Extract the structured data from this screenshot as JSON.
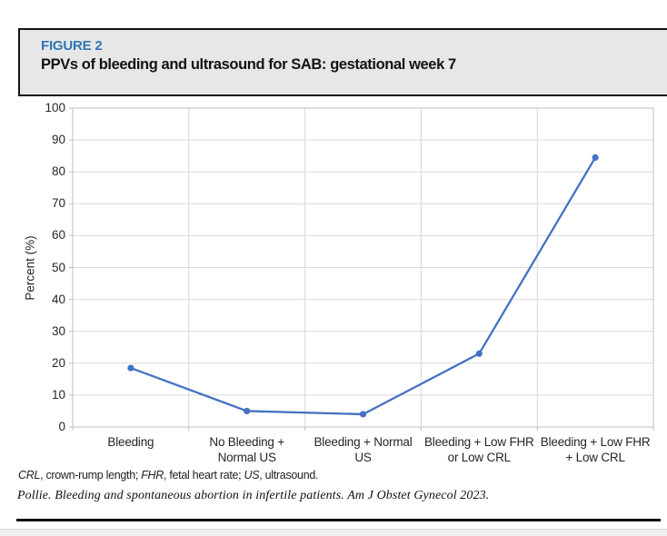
{
  "header": {
    "figure_label": "FIGURE 2",
    "title": "PPVs of bleeding and ultrasound for SAB: gestational week 7"
  },
  "chart_data": {
    "type": "line",
    "categories": [
      "Bleeding",
      "No Bleeding +\nNormal US",
      "Bleeding + Normal\nUS",
      "Bleeding + Low FHR\nor Low CRL",
      "Bleeding + Low FHR\n+ Low CRL"
    ],
    "values": [
      18.5,
      5,
      4,
      23,
      84.5
    ],
    "title": "",
    "xlabel": "",
    "ylabel": "Percent (%)",
    "ylim": [
      0,
      100
    ],
    "ytick_step": 10,
    "grid": true,
    "legend": "none",
    "marker": "circle",
    "colors": {
      "line": "#4472c4",
      "marker": "#4472c4",
      "gridline": "#d9d9d9",
      "axis_border": "#bfbfbf",
      "tick_text": "#262626"
    }
  },
  "footnotes": {
    "abbr_segments": [
      {
        "text": "CRL",
        "italic": true
      },
      {
        "text": ", crown-rump length; ",
        "italic": false
      },
      {
        "text": "FHR",
        "italic": true
      },
      {
        "text": ", fetal heart rate; ",
        "italic": false
      },
      {
        "text": "US",
        "italic": true
      },
      {
        "text": ", ultrasound.",
        "italic": false
      }
    ],
    "citation": "Pollie. Bleeding and spontaneous abortion in infertile patients. Am J Obstet Gynecol 2023."
  }
}
